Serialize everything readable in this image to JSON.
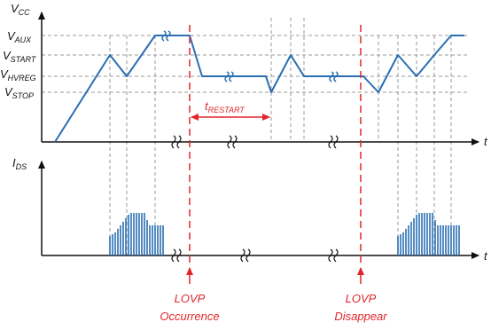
{
  "colors": {
    "waveform": "#2a6fb3",
    "event": "#e0262b",
    "axis": "#111111",
    "grid": "#9a9a9a"
  },
  "vcc_axis": {
    "name_main": "V",
    "name_sub": "CC",
    "time_label": "t"
  },
  "ids_axis": {
    "name_main": "I",
    "name_sub": "DS",
    "time_label": "t"
  },
  "levels": [
    {
      "id": "aux",
      "main": "V",
      "sub": "AUX"
    },
    {
      "id": "start",
      "main": "V",
      "sub": "START"
    },
    {
      "id": "hvreg",
      "main": "V",
      "sub": "HVREG"
    },
    {
      "id": "stop",
      "main": "V",
      "sub": "STOP"
    }
  ],
  "restart_interval": {
    "main": "t",
    "sub": "RESTART"
  },
  "events": [
    {
      "line1": "LOVP",
      "line2": "Occurrence"
    },
    {
      "line1": "LOVP",
      "line2": "Disappear"
    }
  ]
}
